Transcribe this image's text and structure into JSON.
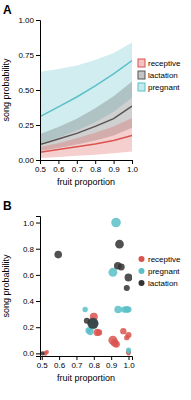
{
  "chart_data": [
    {
      "type": "line",
      "title": "A",
      "x": [
        0.5,
        0.6,
        0.7,
        0.8,
        0.9,
        1.0
      ],
      "series": [
        {
          "name": "receptive",
          "color": "#d9534f",
          "values": [
            0.055,
            0.075,
            0.095,
            0.115,
            0.14,
            0.175
          ],
          "lo": [
            0.015,
            0.022,
            0.03,
            0.038,
            0.048,
            0.06
          ],
          "hi": [
            0.095,
            0.12,
            0.155,
            0.195,
            0.24,
            0.3
          ]
        },
        {
          "name": "lactation",
          "color": "#555555",
          "values": [
            0.11,
            0.15,
            0.19,
            0.24,
            0.295,
            0.385
          ],
          "lo": [
            0.065,
            0.085,
            0.11,
            0.14,
            0.175,
            0.23
          ],
          "hi": [
            0.185,
            0.235,
            0.295,
            0.37,
            0.455,
            0.56
          ]
        },
        {
          "name": "pregnant",
          "color": "#5bc0c8",
          "values": [
            0.31,
            0.38,
            0.45,
            0.53,
            0.615,
            0.71
          ],
          "lo": [
            0.12,
            0.16,
            0.21,
            0.27,
            0.345,
            0.445
          ],
          "hi": [
            0.63,
            0.65,
            0.675,
            0.715,
            0.765,
            0.84
          ]
        }
      ],
      "xlim": [
        0.5,
        1.0
      ],
      "ylim": [
        0.0,
        1.0
      ],
      "xticks": [
        0.5,
        0.6,
        0.7,
        0.8,
        0.9,
        {
          "value": 1.0,
          "label": "1.0"
        }
      ],
      "yticks": [
        {
          "value": 0.0,
          "label": "0.00"
        },
        {
          "value": 0.25,
          "label": "0.25"
        },
        {
          "value": 0.5,
          "label": "0.50"
        },
        {
          "value": 0.75,
          "label": "0.75"
        },
        {
          "value": 1.0,
          "label": "1.00"
        }
      ],
      "xlabel": "fruit proportion",
      "ylabel": "song probability",
      "grid": false,
      "legend": "right"
    },
    {
      "type": "scatter",
      "title": "B",
      "series": [
        {
          "name": "receptive",
          "color": "#d9534f",
          "x": [
            0.52,
            0.53,
            0.8,
            0.82,
            0.83,
            0.91,
            0.92,
            0.93,
            0.97,
            0.99,
            1.0,
            1.0,
            1.0
          ],
          "values": [
            0.0,
            0.01,
            0.28,
            0.16,
            0.16,
            0.1,
            0.08,
            0.07,
            0.17,
            0.12,
            0.0,
            0.01,
            0.14
          ],
          "sizes": [
            18,
            14,
            55,
            45,
            35,
            70,
            50,
            42,
            35,
            25,
            14,
            22,
            32
          ]
        },
        {
          "name": "pregnant",
          "color": "#5bc0c8",
          "x": [
            0.75,
            0.77,
            0.78,
            0.795,
            0.8,
            0.91,
            0.928,
            0.94,
            0.975,
            0.99,
            1.0,
            1.0,
            1.0
          ],
          "values": [
            0.335,
            0.175,
            0.165,
            0.225,
            0.245,
            0.62,
            1.0,
            0.335,
            0.335,
            0.335,
            0.01,
            0.025,
            0.335
          ],
          "sizes": [
            25,
            35,
            42,
            105,
            35,
            68,
            80,
            50,
            35,
            42,
            14,
            22,
            32
          ]
        },
        {
          "name": "lactation",
          "color": "#333333",
          "x": [
            0.505,
            0.595,
            0.76,
            0.795,
            0.938,
            0.948,
            0.958,
            0.99,
            1.0
          ],
          "values": [
            0.0,
            0.755,
            0.25,
            0.23,
            0.67,
            0.835,
            0.66,
            0.5,
            0.58
          ],
          "sizes": [
            14,
            50,
            32,
            105,
            50,
            65,
            42,
            32,
            55
          ]
        }
      ],
      "xlim": [
        0.49,
        1.02
      ],
      "ylim": [
        -0.02,
        1.05
      ],
      "xticks": [
        0.5,
        0.6,
        0.7,
        0.8,
        0.9,
        {
          "value": 1.0,
          "label": "1.0"
        }
      ],
      "yticks": [
        {
          "value": 0.0,
          "label": "0.0"
        },
        0.2,
        0.4,
        0.6,
        0.8,
        {
          "value": 1.0,
          "label": "1.0"
        }
      ],
      "xlabel": "fruit proportion",
      "ylabel": "song probability",
      "grid": false,
      "legend": "right"
    }
  ]
}
